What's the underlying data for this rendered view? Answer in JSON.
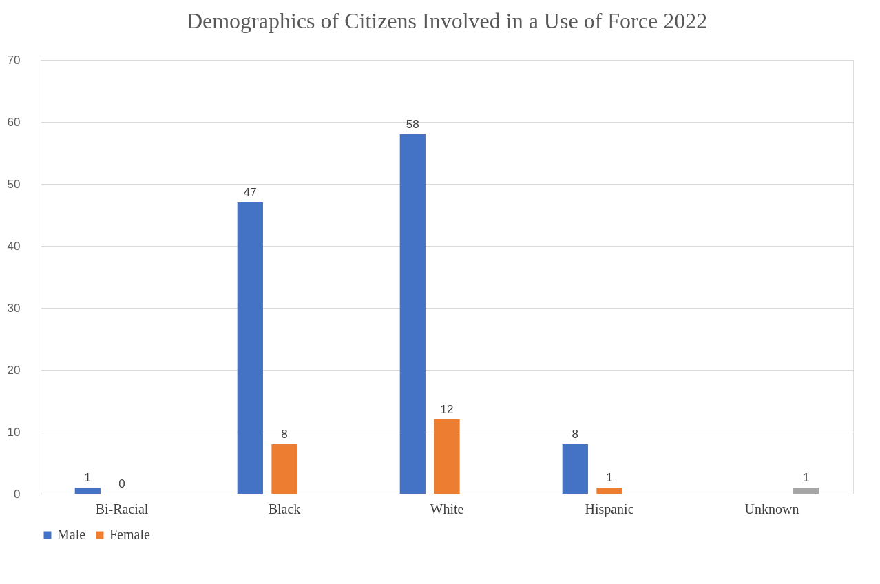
{
  "chart_data": {
    "type": "bar",
    "title": "Demographics of Citizens Involved in a Use of Force 2022",
    "categories": [
      "Bi-Racial",
      "Black",
      "White",
      "Hispanic",
      "Unknown"
    ],
    "series": [
      {
        "name": "Male",
        "color": "#4472c4",
        "values": [
          1,
          47,
          58,
          8,
          null
        ]
      },
      {
        "name": "Female",
        "color": "#ed7d31",
        "values": [
          0,
          8,
          12,
          1,
          null
        ]
      },
      {
        "color": "#a5a5a5",
        "values": [
          null,
          null,
          null,
          null,
          1
        ]
      }
    ],
    "ylim": [
      0,
      70
    ],
    "yticks": [
      0,
      10,
      20,
      30,
      40,
      50,
      60,
      70
    ],
    "grid": "y",
    "legend": "bottom",
    "data_labels": true
  }
}
